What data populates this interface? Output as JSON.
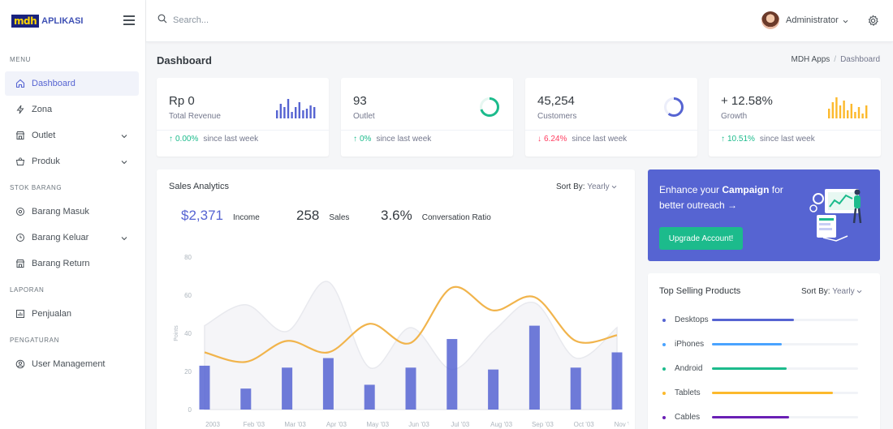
{
  "brand": {
    "logo": "mdh",
    "name": "APLIKASI"
  },
  "search": {
    "placeholder": "Search..."
  },
  "user": {
    "name": "Administrator"
  },
  "sidebar": {
    "sections": [
      "MENU",
      "STOK BARANG",
      "LAPORAN",
      "PENGATURAN"
    ],
    "items": [
      {
        "label": "Dashboard",
        "icon": "home-icon"
      },
      {
        "label": "Zona",
        "icon": "bolt-icon"
      },
      {
        "label": "Outlet",
        "icon": "store-icon"
      },
      {
        "label": "Produk",
        "icon": "basket-icon"
      },
      {
        "label": "Barang Masuk",
        "icon": "settings-icon"
      },
      {
        "label": "Barang Keluar",
        "icon": "clock-icon"
      },
      {
        "label": "Barang Return",
        "icon": "store-icon"
      },
      {
        "label": "Penjualan",
        "icon": "chart-icon"
      },
      {
        "label": "User Management",
        "icon": "user-circle-icon"
      }
    ]
  },
  "page": {
    "title": "Dashboard"
  },
  "breadcrumb": [
    "MDH Apps",
    "Dashboard"
  ],
  "stats": [
    {
      "value": "Rp 0",
      "label": "Total Revenue",
      "delta": "0.00%",
      "since": "since last week",
      "trend": "up",
      "color": "#5664d2"
    },
    {
      "value": "93",
      "label": "Outlet",
      "delta": "0%",
      "since": "since last week",
      "trend": "up",
      "color": "#1cbb8c",
      "progress": 0.7
    },
    {
      "value": "45,254",
      "label": "Customers",
      "delta": "6.24%",
      "since": "since last week",
      "trend": "down",
      "color": "#5664d2",
      "progress": 0.6
    },
    {
      "value": "+ 12.58%",
      "label": "Growth",
      "delta": "10.51%",
      "since": "since last week",
      "trend": "up",
      "color": "#fcb92c"
    }
  ],
  "analytics": {
    "title": "Sales Analytics",
    "sort_label": "Sort By:",
    "sort_value": "Yearly",
    "income_value": "$2,371",
    "income_label": "Income",
    "sales_value": "258",
    "sales_label": "Sales",
    "conv_value": "3.6%",
    "conv_label": "Conversation Ratio"
  },
  "chart_data": {
    "type": "bar",
    "categories": [
      "2003",
      "Feb '03",
      "Mar '03",
      "Apr '03",
      "May '03",
      "Jun '03",
      "Jul '03",
      "Aug '03",
      "Sep '03",
      "Oct '03",
      "Nov '03"
    ],
    "series": [
      {
        "name": "",
        "type": "bar",
        "values": [
          23,
          11,
          22,
          27,
          13,
          22,
          37,
          21,
          44,
          22,
          30
        ]
      },
      {
        "name": "",
        "type": "area",
        "values": [
          44,
          55,
          41,
          67,
          22,
          43,
          21,
          41,
          56,
          27,
          43
        ]
      },
      {
        "name": "",
        "type": "line",
        "values": [
          30,
          25,
          36,
          30,
          45,
          35,
          64,
          52,
          59,
          36,
          39
        ]
      }
    ],
    "ylabel": "Points",
    "ylim": [
      0,
      80
    ],
    "yticks": [
      0,
      20,
      40,
      60,
      80
    ],
    "colors": {
      "bar": "#5664d2",
      "area": "#e8e9ee",
      "line": "#f1b44c"
    }
  },
  "promo": {
    "text_pre": "Enhance your ",
    "text_bold": "Campaign",
    "text_post": " for better outreach →",
    "button": "Upgrade Account!"
  },
  "top_products": {
    "title": "Top Selling Products",
    "sort_label": "Sort By:",
    "sort_value": "Yearly",
    "items": [
      {
        "name": "Desktops",
        "value": 0.56,
        "color": "#5664d2"
      },
      {
        "name": "iPhones",
        "value": 0.48,
        "color": "#4aa3ff"
      },
      {
        "name": "Android",
        "value": 0.51,
        "color": "#1cbb8c"
      },
      {
        "name": "Tablets",
        "value": 0.83,
        "color": "#fcb92c"
      },
      {
        "name": "Cables",
        "value": 0.53,
        "color": "#6a1fb5"
      }
    ]
  }
}
